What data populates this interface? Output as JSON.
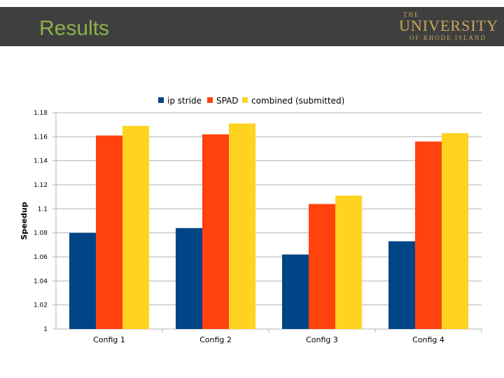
{
  "header": {
    "title": "Results",
    "logo": {
      "line1": "THE",
      "line2": "UNIVERSITY",
      "line3": "OF RHODE ISLAND"
    }
  },
  "colors": {
    "header_bg": "#3f3f3f",
    "title": "#8db04b",
    "logo": "#c9a85a"
  },
  "chart_data": {
    "type": "bar",
    "title": "",
    "xlabel": "",
    "ylabel": "Speedup",
    "ylim": [
      1,
      1.18
    ],
    "yticks": [
      "1",
      "1.02",
      "1.04",
      "1.06",
      "1.08",
      "1.1",
      "1.12",
      "1.14",
      "1.16",
      "1.18"
    ],
    "categories": [
      "Config 1",
      "Config 2",
      "Config 3",
      "Config 4"
    ],
    "legend_position": "top",
    "grid": "horizontal",
    "series": [
      {
        "name": "ip stride",
        "color": "#004586",
        "values": [
          1.08,
          1.084,
          1.062,
          1.073
        ]
      },
      {
        "name": "SPAD",
        "color": "#ff420e",
        "values": [
          1.161,
          1.162,
          1.104,
          1.156
        ]
      },
      {
        "name": "combined (submitted)",
        "color": "#ffd320",
        "values": [
          1.169,
          1.171,
          1.111,
          1.163
        ]
      }
    ]
  }
}
